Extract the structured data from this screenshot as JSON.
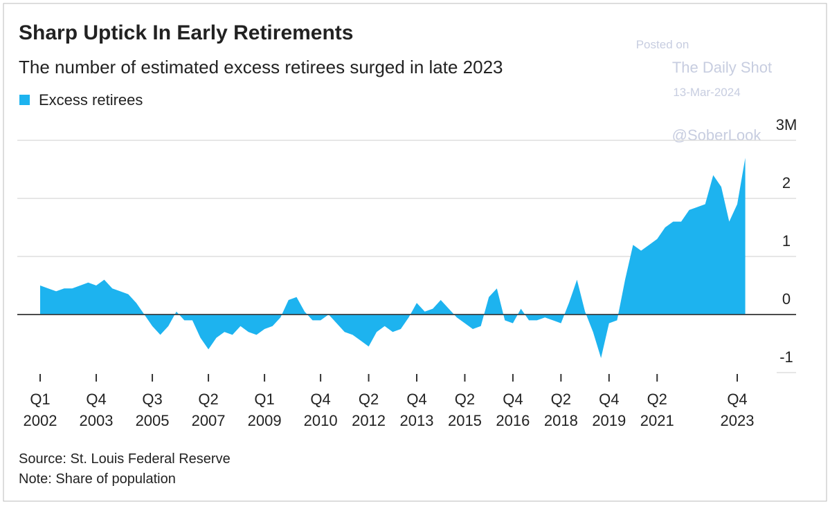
{
  "chart_data": {
    "type": "area",
    "title": "Sharp Uptick In Early Retirements",
    "subtitle": "The number of estimated excess retirees surged in late 2023",
    "annotations": [
      "Posted on",
      "The Daily Shot",
      "13-Mar-2024",
      "@SoberLook"
    ],
    "source": "Source: St. Louis Federal Reserve",
    "note": "Note: Share of population",
    "x": [
      "Q1 2002",
      "Q2 2002",
      "Q3 2002",
      "Q4 2002",
      "Q1 2003",
      "Q2 2003",
      "Q3 2003",
      "Q4 2003",
      "Q1 2004",
      "Q2 2004",
      "Q3 2004",
      "Q4 2004",
      "Q1 2005",
      "Q2 2005",
      "Q3 2005",
      "Q4 2005",
      "Q1 2006",
      "Q2 2006",
      "Q3 2006",
      "Q4 2006",
      "Q1 2007",
      "Q2 2007",
      "Q3 2007",
      "Q4 2007",
      "Q1 2008",
      "Q2 2008",
      "Q3 2008",
      "Q4 2008",
      "Q1 2009",
      "Q2 2009",
      "Q3 2009",
      "Q4 2009",
      "Q1 2010",
      "Q2 2010",
      "Q3 2010",
      "Q4 2010",
      "Q1 2011",
      "Q2 2011",
      "Q3 2011",
      "Q4 2011",
      "Q1 2012",
      "Q2 2012",
      "Q3 2012",
      "Q4 2012",
      "Q1 2013",
      "Q2 2013",
      "Q3 2013",
      "Q4 2013",
      "Q1 2014",
      "Q2 2014",
      "Q3 2014",
      "Q4 2014",
      "Q1 2015",
      "Q2 2015",
      "Q3 2015",
      "Q4 2015",
      "Q1 2016",
      "Q2 2016",
      "Q3 2016",
      "Q4 2016",
      "Q1 2017",
      "Q2 2017",
      "Q3 2017",
      "Q4 2017",
      "Q1 2018",
      "Q2 2018",
      "Q3 2018",
      "Q4 2018",
      "Q1 2019",
      "Q2 2019",
      "Q3 2019",
      "Q4 2019",
      "Q1 2020",
      "Q2 2020",
      "Q3 2020",
      "Q4 2020",
      "Q1 2021",
      "Q2 2021",
      "Q3 2021",
      "Q4 2021",
      "Q1 2022",
      "Q2 2022",
      "Q3 2022",
      "Q4 2022",
      "Q1 2023",
      "Q2 2023",
      "Q3 2023",
      "Q4 2023",
      "Q1 2024"
    ],
    "xticks": [
      "Q1 2002",
      "Q4 2003",
      "Q3 2005",
      "Q2 2007",
      "Q1 2009",
      "Q4 2010",
      "Q2 2012",
      "Q4 2013",
      "Q2 2015",
      "Q4 2016",
      "Q2 2018",
      "Q4 2019",
      "Q2 2021",
      "Q4 2023"
    ],
    "series": [
      {
        "name": "Excess retirees",
        "color": "#1db3ef",
        "values": [
          0.5,
          0.45,
          0.4,
          0.45,
          0.45,
          0.5,
          0.55,
          0.5,
          0.6,
          0.45,
          0.4,
          0.35,
          0.2,
          0.0,
          -0.2,
          -0.35,
          -0.2,
          0.05,
          -0.1,
          -0.1,
          -0.4,
          -0.6,
          -0.4,
          -0.3,
          -0.35,
          -0.2,
          -0.3,
          -0.35,
          -0.25,
          -0.2,
          -0.05,
          0.25,
          0.3,
          0.05,
          -0.1,
          -0.1,
          0.0,
          -0.15,
          -0.3,
          -0.35,
          -0.45,
          -0.55,
          -0.3,
          -0.2,
          -0.3,
          -0.25,
          -0.05,
          0.2,
          0.05,
          0.1,
          0.25,
          0.1,
          -0.05,
          -0.15,
          -0.25,
          -0.2,
          0.3,
          0.45,
          -0.1,
          -0.15,
          0.1,
          -0.1,
          -0.1,
          -0.05,
          -0.1,
          -0.15,
          0.2,
          0.6,
          0.05,
          -0.3,
          -0.75,
          -0.15,
          -0.1,
          0.6,
          1.2,
          1.1,
          1.2,
          1.3,
          1.5,
          1.6,
          1.6,
          1.8,
          1.85,
          1.9,
          2.4,
          2.2,
          1.6,
          1.9,
          2.7
        ]
      }
    ],
    "ylim": [
      -1,
      3
    ],
    "yticks": [
      -1,
      0,
      1,
      2,
      {
        "value": 3,
        "label": "3M"
      }
    ],
    "grid": true
  }
}
